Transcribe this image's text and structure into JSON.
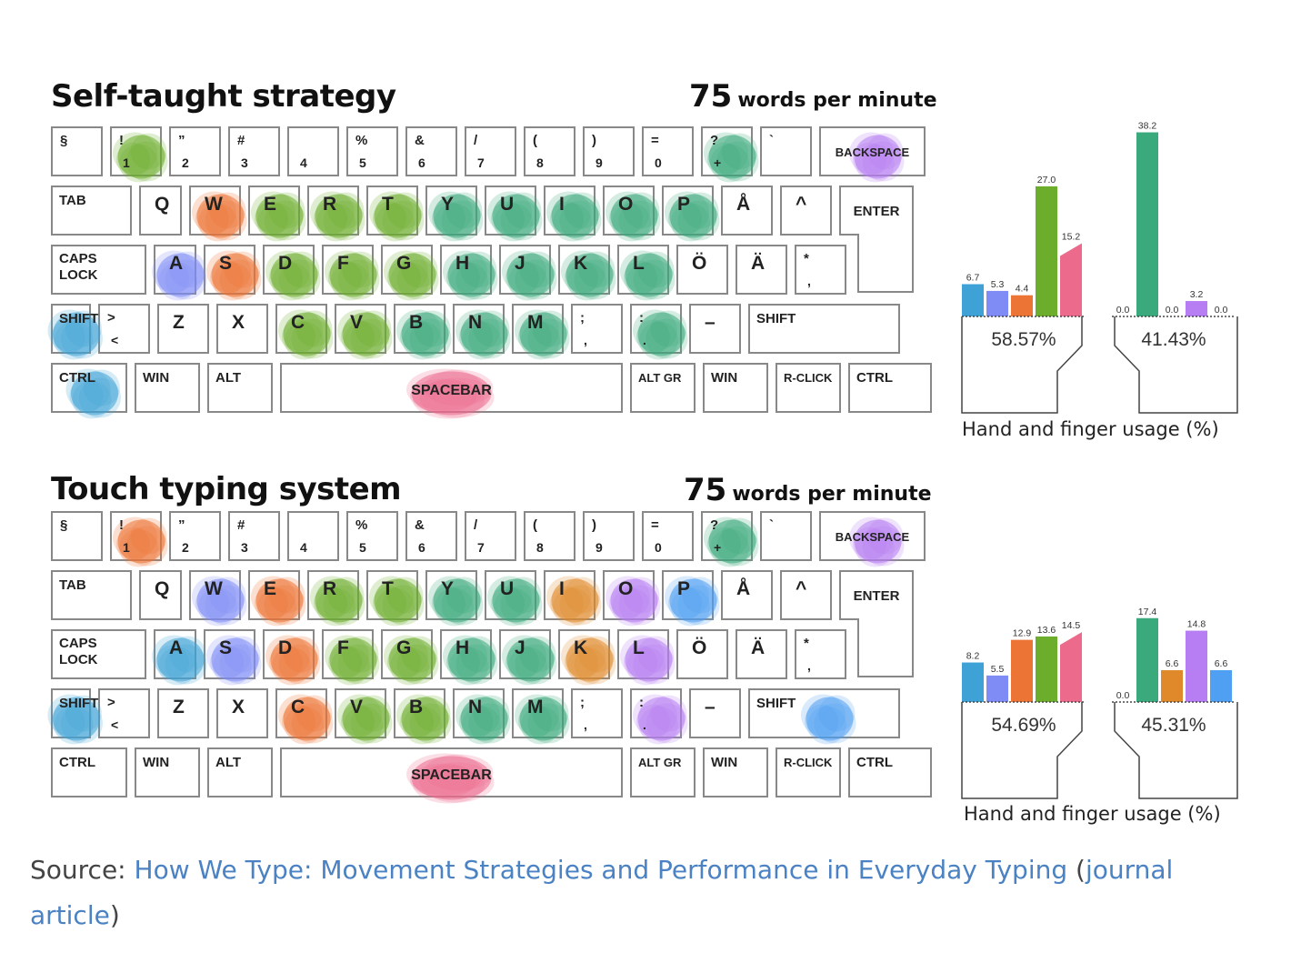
{
  "colors": {
    "little_left": "#3fa2d6",
    "ring_left": "#7f8cf6",
    "middle_left": "#ec7434",
    "index_left": "#6cae2c",
    "thumb": "#ec6b8c",
    "index_right": "#3aa97c",
    "middle_right": "#e0892a",
    "ring_right": "#b77df2",
    "little_right": "#4f9ff2"
  },
  "keyboard_rows": [
    [
      {
        "top": "§",
        "bottom": ""
      },
      {
        "top": "!",
        "bottom": "1"
      },
      {
        "top": "”",
        "bottom": "2"
      },
      {
        "top": "#",
        "bottom": "3"
      },
      {
        "top": "",
        "bottom": "4"
      },
      {
        "top": "%",
        "bottom": "5"
      },
      {
        "top": "&",
        "bottom": "6"
      },
      {
        "top": "/",
        "bottom": "7"
      },
      {
        "top": "(",
        "bottom": "8"
      },
      {
        "top": ")",
        "bottom": "9"
      },
      {
        "top": "=",
        "bottom": "0"
      },
      {
        "top": "?",
        "bottom": "+"
      },
      {
        "top": "`",
        "bottom": ""
      },
      {
        "label": "BACKSPACE"
      }
    ],
    [
      {
        "label": "TAB"
      },
      {
        "label": "Q"
      },
      {
        "label": "W"
      },
      {
        "label": "E"
      },
      {
        "label": "R"
      },
      {
        "label": "T"
      },
      {
        "label": "Y"
      },
      {
        "label": "U"
      },
      {
        "label": "I"
      },
      {
        "label": "O"
      },
      {
        "label": "P"
      },
      {
        "label": "Å"
      },
      {
        "label": "^"
      },
      {
        "label": "ENTER"
      }
    ],
    [
      {
        "label": "CAPS"
      },
      {
        "label": "A"
      },
      {
        "label": "S"
      },
      {
        "label": "D"
      },
      {
        "label": "F"
      },
      {
        "label": "G"
      },
      {
        "label": "H"
      },
      {
        "label": "J"
      },
      {
        "label": "K"
      },
      {
        "label": "L"
      },
      {
        "label": "Ö"
      },
      {
        "label": "Ä"
      },
      {
        "top": "*",
        "bottom": ","
      }
    ],
    [
      {
        "label": "SHIFT"
      },
      {
        "top": ">",
        "bottom": "<"
      },
      {
        "label": "Z"
      },
      {
        "label": "X"
      },
      {
        "label": "C"
      },
      {
        "label": "V"
      },
      {
        "label": "B"
      },
      {
        "label": "N"
      },
      {
        "label": "M"
      },
      {
        "top": ";",
        "bottom": ","
      },
      {
        "top": ":",
        "bottom": "."
      },
      {
        "label": "–"
      },
      {
        "label": "SHIFT"
      }
    ],
    [
      {
        "label": "CTRL"
      },
      {
        "label": "WIN"
      },
      {
        "label": "ALT"
      },
      {
        "label": "SPACEBAR"
      },
      {
        "label": "ALT GR"
      },
      {
        "label": "WIN"
      },
      {
        "label": "R-CLICK"
      },
      {
        "label": "CTRL"
      }
    ]
  ],
  "caps_second_line": "LOCK",
  "panels": [
    {
      "title": "Self-taught strategy",
      "wpm_value": "75",
      "wpm_unit": "words per minute",
      "usage_label": "Hand and finger usage (%)",
      "left_hand_pct": "58.57%",
      "right_hand_pct": "41.43%",
      "blobs": [
        {
          "row": 0,
          "key": 1,
          "c": "index_left"
        },
        {
          "row": 0,
          "key": 11,
          "c": "index_right"
        },
        {
          "row": 0,
          "key": 13,
          "c": "ring_right"
        },
        {
          "row": 1,
          "key": 2,
          "c": "middle_left"
        },
        {
          "row": 1,
          "key": 3,
          "c": "index_left"
        },
        {
          "row": 1,
          "key": 4,
          "c": "index_left"
        },
        {
          "row": 1,
          "key": 5,
          "c": "index_left"
        },
        {
          "row": 1,
          "key": 6,
          "c": "index_right"
        },
        {
          "row": 1,
          "key": 7,
          "c": "index_right"
        },
        {
          "row": 1,
          "key": 8,
          "c": "index_right"
        },
        {
          "row": 1,
          "key": 9,
          "c": "index_right"
        },
        {
          "row": 1,
          "key": 10,
          "c": "index_right"
        },
        {
          "row": 2,
          "key": 1,
          "c": "ring_left"
        },
        {
          "row": 2,
          "key": 2,
          "c": "middle_left"
        },
        {
          "row": 2,
          "key": 3,
          "c": "index_left"
        },
        {
          "row": 2,
          "key": 4,
          "c": "index_left"
        },
        {
          "row": 2,
          "key": 5,
          "c": "index_left"
        },
        {
          "row": 2,
          "key": 6,
          "c": "index_right"
        },
        {
          "row": 2,
          "key": 7,
          "c": "index_right"
        },
        {
          "row": 2,
          "key": 8,
          "c": "index_right"
        },
        {
          "row": 2,
          "key": 9,
          "c": "index_right"
        },
        {
          "row": 3,
          "key": 0,
          "c": "little_left"
        },
        {
          "row": 3,
          "key": 4,
          "c": "index_left"
        },
        {
          "row": 3,
          "key": 5,
          "c": "index_left"
        },
        {
          "row": 3,
          "key": 6,
          "c": "index_right"
        },
        {
          "row": 3,
          "key": 7,
          "c": "index_right"
        },
        {
          "row": 3,
          "key": 8,
          "c": "index_right"
        },
        {
          "row": 3,
          "key": 10,
          "c": "index_right"
        },
        {
          "row": 4,
          "key": 0,
          "c": "little_left"
        },
        {
          "row": 4,
          "key": 3,
          "c": "thumb"
        }
      ]
    },
    {
      "title": "Touch typing system",
      "wpm_value": "75",
      "wpm_unit": "words per minute",
      "usage_label": "Hand and finger usage (%)",
      "left_hand_pct": "54.69%",
      "right_hand_pct": "45.31%",
      "blobs": [
        {
          "row": 0,
          "key": 1,
          "c": "middle_left"
        },
        {
          "row": 0,
          "key": 11,
          "c": "index_right"
        },
        {
          "row": 0,
          "key": 13,
          "c": "ring_right"
        },
        {
          "row": 1,
          "key": 2,
          "c": "ring_left"
        },
        {
          "row": 1,
          "key": 3,
          "c": "middle_left"
        },
        {
          "row": 1,
          "key": 4,
          "c": "index_left"
        },
        {
          "row": 1,
          "key": 5,
          "c": "index_left"
        },
        {
          "row": 1,
          "key": 6,
          "c": "index_right"
        },
        {
          "row": 1,
          "key": 7,
          "c": "index_right"
        },
        {
          "row": 1,
          "key": 8,
          "c": "middle_right"
        },
        {
          "row": 1,
          "key": 9,
          "c": "ring_right"
        },
        {
          "row": 1,
          "key": 10,
          "c": "little_right"
        },
        {
          "row": 2,
          "key": 1,
          "c": "little_left"
        },
        {
          "row": 2,
          "key": 2,
          "c": "ring_left"
        },
        {
          "row": 2,
          "key": 3,
          "c": "middle_left"
        },
        {
          "row": 2,
          "key": 4,
          "c": "index_left"
        },
        {
          "row": 2,
          "key": 5,
          "c": "index_left"
        },
        {
          "row": 2,
          "key": 6,
          "c": "index_right"
        },
        {
          "row": 2,
          "key": 7,
          "c": "index_right"
        },
        {
          "row": 2,
          "key": 8,
          "c": "middle_right"
        },
        {
          "row": 2,
          "key": 9,
          "c": "ring_right"
        },
        {
          "row": 3,
          "key": 0,
          "c": "little_left"
        },
        {
          "row": 3,
          "key": 4,
          "c": "middle_left"
        },
        {
          "row": 3,
          "key": 5,
          "c": "index_left"
        },
        {
          "row": 3,
          "key": 6,
          "c": "index_left"
        },
        {
          "row": 3,
          "key": 7,
          "c": "index_right"
        },
        {
          "row": 3,
          "key": 8,
          "c": "index_right"
        },
        {
          "row": 3,
          "key": 10,
          "c": "ring_right"
        },
        {
          "row": 3,
          "key": 12,
          "c": "little_right"
        },
        {
          "row": 4,
          "key": 3,
          "c": "thumb"
        }
      ]
    }
  ],
  "chart_data": [
    {
      "type": "bar",
      "title": "Self-taught strategy",
      "ylabel": "Hand and finger usage (%)",
      "groups": [
        {
          "hand": "left",
          "total": "58.57%",
          "values": [
            6.7,
            5.3,
            4.4,
            27.0,
            15.2
          ],
          "colors": [
            "little_left",
            "ring_left",
            "middle_left",
            "index_left",
            "thumb"
          ]
        },
        {
          "hand": "right",
          "total": "41.43%",
          "values": [
            0.0,
            38.2,
            0.0,
            3.2,
            0.0
          ],
          "colors": [
            "thumb",
            "index_right",
            "middle_right",
            "ring_right",
            "little_right"
          ]
        }
      ]
    },
    {
      "type": "bar",
      "title": "Touch typing system",
      "ylabel": "Hand and finger usage (%)",
      "groups": [
        {
          "hand": "left",
          "total": "54.69%",
          "values": [
            8.2,
            5.5,
            12.9,
            13.6,
            14.5
          ],
          "colors": [
            "little_left",
            "ring_left",
            "middle_left",
            "index_left",
            "thumb"
          ]
        },
        {
          "hand": "right",
          "total": "45.31%",
          "values": [
            0.0,
            17.4,
            6.6,
            14.8,
            6.6
          ],
          "colors": [
            "thumb",
            "index_right",
            "middle_right",
            "ring_right",
            "little_right"
          ]
        }
      ]
    }
  ],
  "source": {
    "prefix": "Source: ",
    "link_text": "How We Type: Movement Strategies and Performance in Everyday Typing",
    "paren_open": " (",
    "link2_text": "journal article",
    "paren_close": ")"
  }
}
